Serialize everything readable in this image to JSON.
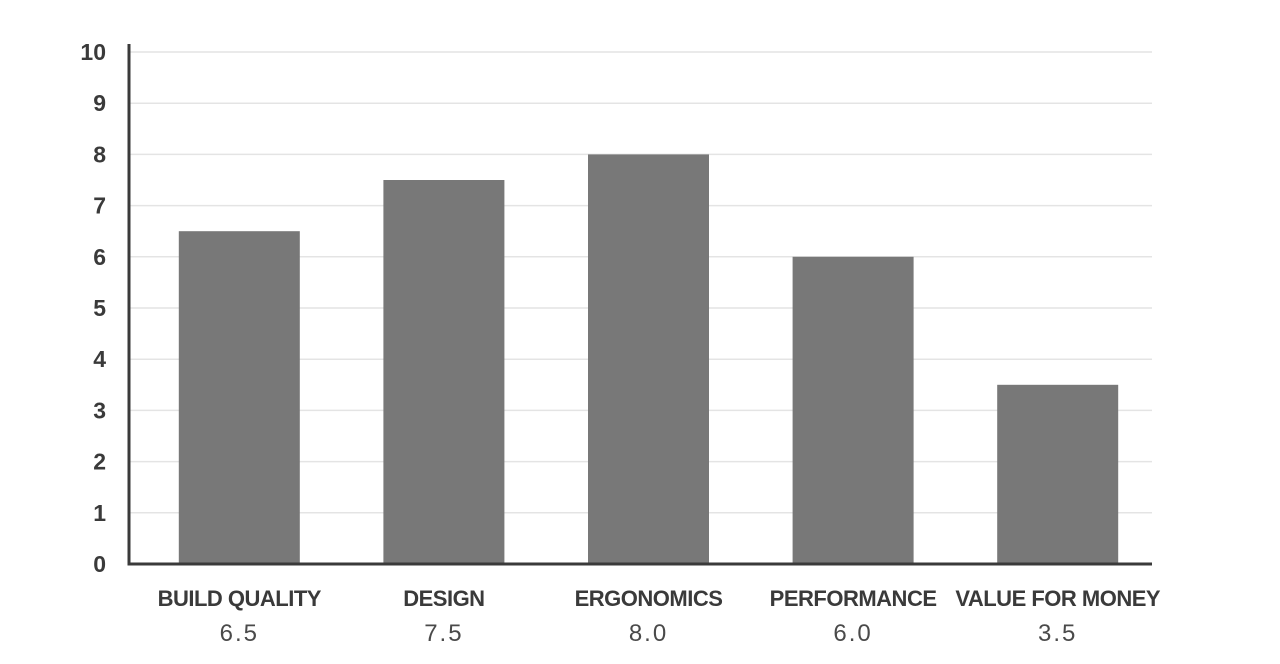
{
  "chart_data": {
    "type": "bar",
    "categories": [
      "BUILD QUALITY",
      "DESIGN",
      "ERGONOMICS",
      "PERFORMANCE",
      "VALUE FOR MONEY"
    ],
    "values": [
      6.5,
      7.5,
      8.0,
      6.0,
      3.5
    ],
    "value_labels": [
      "6.5",
      "7.5",
      "8.0",
      "6.0",
      "3.5"
    ],
    "title": "",
    "xlabel": "",
    "ylabel": "",
    "ylim": [
      0,
      10
    ],
    "yticks": [
      "0",
      "1",
      "2",
      "3",
      "4",
      "5",
      "6",
      "7",
      "8",
      "9",
      "10"
    ],
    "grid": true,
    "legend": "none",
    "colors": {
      "bar": "#787878",
      "axis": "#3a3a3a",
      "grid": "#e4e4e4",
      "text": "#3a3a3a"
    }
  }
}
